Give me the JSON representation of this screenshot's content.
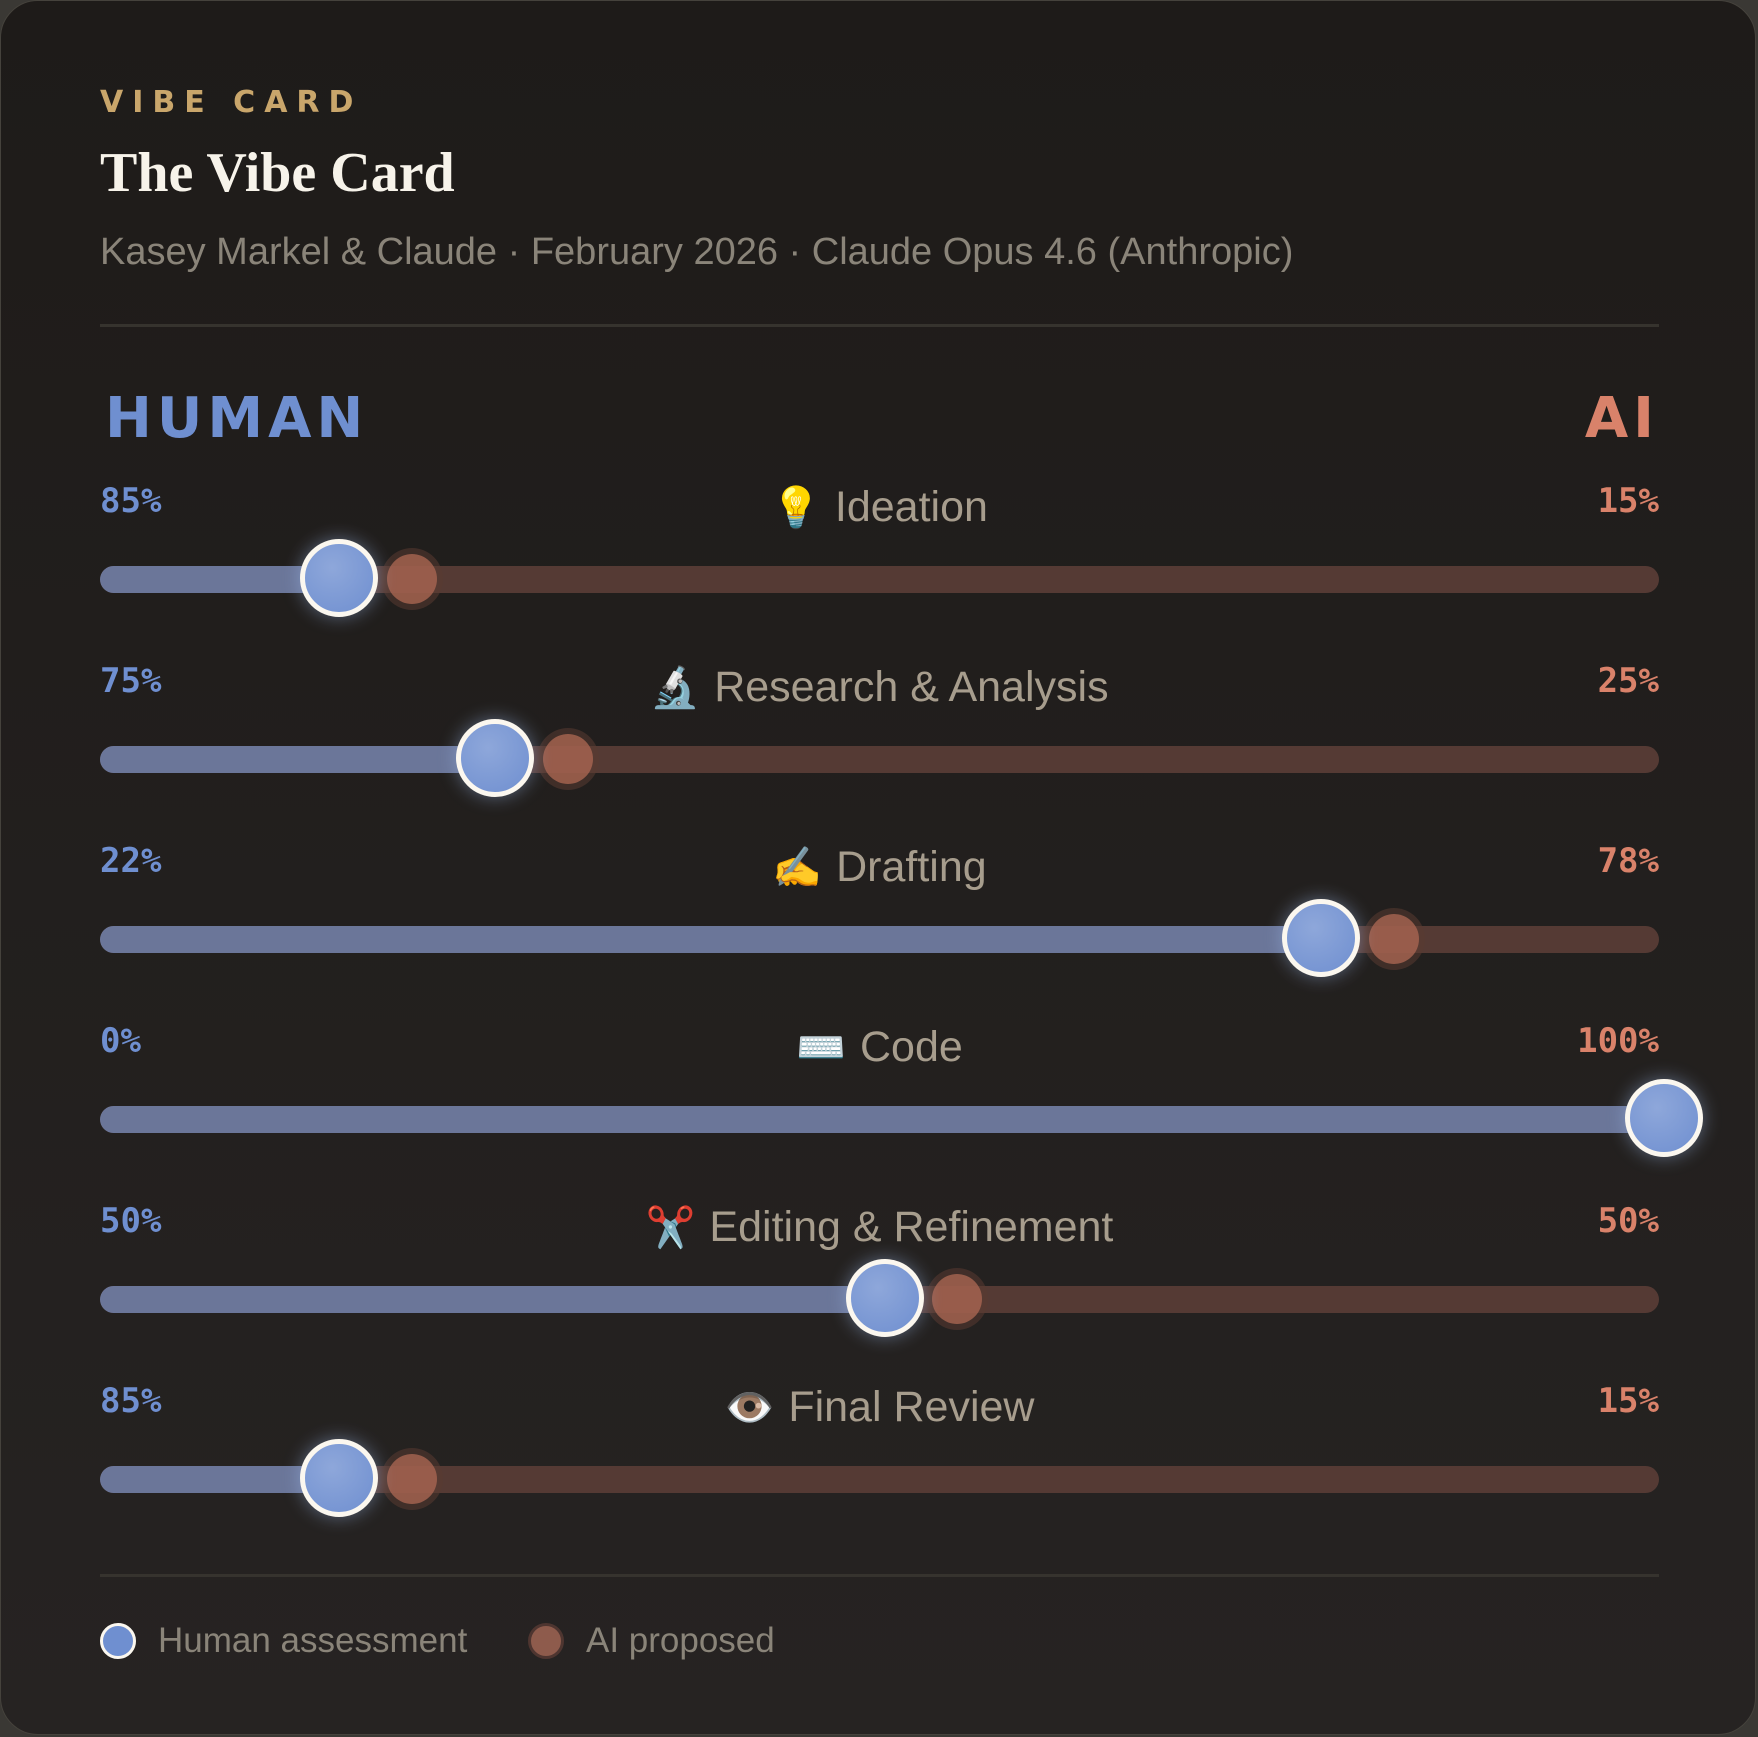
{
  "card": {
    "eyebrow": "VIBE CARD",
    "title": "The Vibe Card",
    "subtitle": "Kasey Markel & Claude · February 2026 · Claude Opus 4.6 (Anthropic)"
  },
  "axis": {
    "left_label": "HUMAN",
    "right_label": "AI",
    "colors": {
      "human": "#6f8fd0",
      "ai": "#d9826a",
      "accent": "#c9a66b"
    }
  },
  "rows": [
    {
      "icon": "💡",
      "icon_name": "lightbulb-icon",
      "label": "Ideation",
      "human_pct": "85%",
      "ai_pct": "15%",
      "human_value": 85,
      "ai_value": 15,
      "ai_proposed_value": 20
    },
    {
      "icon": "🔬",
      "icon_name": "microscope-icon",
      "label": "Research & Analysis",
      "human_pct": "75%",
      "ai_pct": "25%",
      "human_value": 75,
      "ai_value": 25,
      "ai_proposed_value": 30
    },
    {
      "icon": "✍️",
      "icon_name": "writing-hand-icon",
      "label": "Drafting",
      "human_pct": "22%",
      "ai_pct": "78%",
      "human_value": 22,
      "ai_value": 78,
      "ai_proposed_value": 83
    },
    {
      "icon": "⌨️",
      "icon_name": "keyboard-icon",
      "label": "Code",
      "human_pct": "0%",
      "ai_pct": "100%",
      "human_value": 0,
      "ai_value": 100,
      "ai_proposed_value": 100
    },
    {
      "icon": "✂️",
      "icon_name": "scissors-icon",
      "label": "Editing & Refinement",
      "human_pct": "50%",
      "ai_pct": "50%",
      "human_value": 50,
      "ai_value": 50,
      "ai_proposed_value": 55
    },
    {
      "icon": "👁️",
      "icon_name": "eye-icon",
      "label": "Final Review",
      "human_pct": "85%",
      "ai_pct": "15%",
      "human_value": 85,
      "ai_value": 15,
      "ai_proposed_value": 20
    }
  ],
  "legend": {
    "human": "Human assessment",
    "ai": "AI proposed"
  }
}
